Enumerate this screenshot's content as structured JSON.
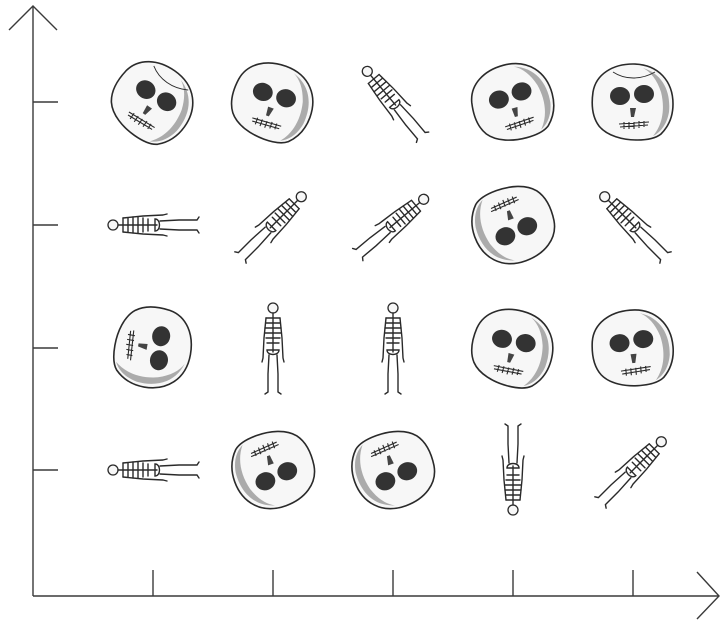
{
  "figure": {
    "columns": 5,
    "rows": 4,
    "colors": {
      "ink": "#2a2a2a",
      "shade": "#6e6e6e",
      "bone": "#f7f7f7",
      "axis": "#3a3a3a"
    },
    "grid": [
      [
        {
          "type": "skull",
          "view": "top-down",
          "rotation": 35
        },
        {
          "type": "skull",
          "view": "front",
          "rotation": 20
        },
        {
          "type": "skeleton",
          "rotation": -40
        },
        {
          "type": "skull",
          "view": "front",
          "rotation": -15
        },
        {
          "type": "skull",
          "view": "top-down",
          "rotation": 0
        }
      ],
      [
        {
          "type": "skeleton",
          "rotation": -90
        },
        {
          "type": "skeleton",
          "rotation": 45
        },
        {
          "type": "skeleton",
          "rotation": 50
        },
        {
          "type": "skull",
          "view": "front",
          "rotation": 160
        },
        {
          "type": "skeleton",
          "rotation": -45
        }
      ],
      [
        {
          "type": "skull",
          "view": "front",
          "rotation": 100
        },
        {
          "type": "skeleton",
          "rotation": 0
        },
        {
          "type": "skeleton",
          "rotation": 0
        },
        {
          "type": "skull",
          "view": "front",
          "rotation": 15
        },
        {
          "type": "skull",
          "view": "front",
          "rotation": -5
        }
      ],
      [
        {
          "type": "skeleton",
          "rotation": -90
        },
        {
          "type": "skull",
          "view": "front",
          "rotation": 160
        },
        {
          "type": "skull",
          "view": "front",
          "rotation": 160
        },
        {
          "type": "skeleton",
          "rotation": 180
        },
        {
          "type": "skeleton",
          "rotation": 45
        }
      ]
    ]
  }
}
